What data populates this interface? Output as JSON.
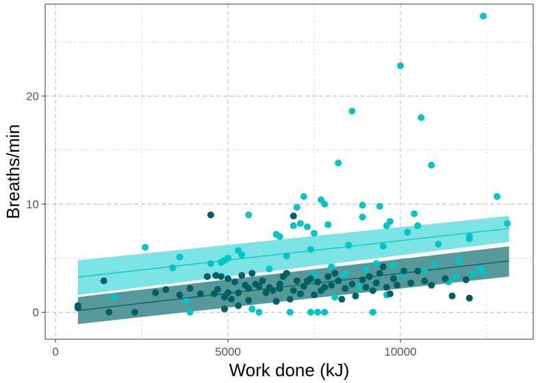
{
  "chart_data": {
    "type": "scatter",
    "title": "",
    "xlabel": "Work done (kJ)",
    "ylabel": "Breaths/min",
    "xlim": [
      -300,
      13850
    ],
    "ylim": [
      -2.5,
      28.5
    ],
    "x_ticks": [
      0,
      5000,
      10000
    ],
    "x_tick_labels": [
      "0",
      "5000",
      "10000"
    ],
    "y_ticks": [
      0,
      10,
      20
    ],
    "y_tick_labels": [
      "0",
      "10",
      "20"
    ],
    "grid": true,
    "legend": "none",
    "series": [
      {
        "color": "#00C4C7",
        "band_color": "#6EE0E1",
        "fit": {
          "x": [
            650,
            13150
          ],
          "y": [
            3.25,
            7.75
          ],
          "lower": [
            1.6,
            6.5
          ],
          "upper": [
            4.8,
            8.9
          ]
        },
        "points": [
          [
            1700,
            1.4
          ],
          [
            2600,
            6.0
          ],
          [
            3400,
            4.1
          ],
          [
            3600,
            5.1
          ],
          [
            3800,
            1.0
          ],
          [
            3900,
            0.0
          ],
          [
            4500,
            4.5
          ],
          [
            4800,
            4.6
          ],
          [
            4900,
            4.8
          ],
          [
            5000,
            5.0
          ],
          [
            5300,
            5.7
          ],
          [
            5400,
            5.3
          ],
          [
            5600,
            9.0
          ],
          [
            5700,
            0.3
          ],
          [
            5900,
            0.0
          ],
          [
            6200,
            4.0
          ],
          [
            6400,
            7.2
          ],
          [
            6500,
            7.0
          ],
          [
            6700,
            5.2
          ],
          [
            6800,
            0.0
          ],
          [
            6900,
            8.0
          ],
          [
            7000,
            9.7
          ],
          [
            7100,
            8.2
          ],
          [
            7200,
            10.7
          ],
          [
            7300,
            7.9
          ],
          [
            7400,
            5.8
          ],
          [
            7500,
            7.3
          ],
          [
            7600,
            0.0
          ],
          [
            7700,
            10.4
          ],
          [
            7800,
            10.0
          ],
          [
            7900,
            8.1
          ],
          [
            7400,
            0.0
          ],
          [
            7500,
            3.5
          ],
          [
            7800,
            0.0
          ],
          [
            8000,
            4.2
          ],
          [
            8100,
            1.4
          ],
          [
            8200,
            13.8
          ],
          [
            8400,
            3.5
          ],
          [
            8500,
            6.2
          ],
          [
            8600,
            18.6
          ],
          [
            8800,
            2.3
          ],
          [
            8900,
            9.9
          ],
          [
            8900,
            8.8
          ],
          [
            9000,
            4.0
          ],
          [
            9200,
            0.0
          ],
          [
            9300,
            4.5
          ],
          [
            9400,
            9.8
          ],
          [
            9500,
            6.1
          ],
          [
            9600,
            8.0
          ],
          [
            9700,
            8.4
          ],
          [
            9600,
            1.6
          ],
          [
            9800,
            4.3
          ],
          [
            10000,
            22.8
          ],
          [
            10100,
            3.5
          ],
          [
            10200,
            7.4
          ],
          [
            10400,
            9.1
          ],
          [
            10500,
            8.0
          ],
          [
            10600,
            18.0
          ],
          [
            10700,
            3.8
          ],
          [
            10900,
            13.6
          ],
          [
            11000,
            4.4
          ],
          [
            11100,
            6.3
          ],
          [
            11400,
            2.8
          ],
          [
            11600,
            3.3
          ],
          [
            11700,
            4.8
          ],
          [
            12000,
            7.0
          ],
          [
            12000,
            6.8
          ],
          [
            12100,
            3.5
          ],
          [
            12300,
            4.0
          ],
          [
            12400,
            27.4
          ],
          [
            12400,
            3.7
          ],
          [
            12800,
            10.7
          ],
          [
            13100,
            8.2
          ]
        ]
      },
      {
        "color": "#005F61",
        "band_color": "#458E8F",
        "fit": {
          "x": [
            650,
            13150
          ],
          "y": [
            0.15,
            4.75
          ],
          "lower": [
            -1.1,
            3.3
          ],
          "upper": [
            1.4,
            6.1
          ]
        },
        "points": [
          [
            650,
            0.6
          ],
          [
            650,
            0.4
          ],
          [
            1400,
            2.9
          ],
          [
            1550,
            0.0
          ],
          [
            2300,
            0.0
          ],
          [
            2900,
            1.8
          ],
          [
            3200,
            2.1
          ],
          [
            3600,
            1.6
          ],
          [
            3900,
            2.2
          ],
          [
            4200,
            1.7
          ],
          [
            4500,
            9.0
          ],
          [
            4600,
            1.7
          ],
          [
            4650,
            3.4
          ],
          [
            4700,
            2.1
          ],
          [
            4800,
            3.3
          ],
          [
            4900,
            1.4
          ],
          [
            5000,
            1.8
          ],
          [
            5000,
            3.1
          ],
          [
            5100,
            1.2
          ],
          [
            5200,
            2.8
          ],
          [
            5300,
            1.8
          ],
          [
            5400,
            3.4
          ],
          [
            5500,
            2.5
          ],
          [
            5600,
            2.2
          ],
          [
            5600,
            1.1
          ],
          [
            5700,
            3.6
          ],
          [
            5800,
            2.6
          ],
          [
            5900,
            2.4
          ],
          [
            6000,
            2.9
          ],
          [
            6100,
            1.8
          ],
          [
            6200,
            2.3
          ],
          [
            6300,
            2.0
          ],
          [
            6400,
            1.0
          ],
          [
            6500,
            2.6
          ],
          [
            6600,
            3.3
          ],
          [
            6700,
            3.6
          ],
          [
            6800,
            1.2
          ],
          [
            6900,
            2.0
          ],
          [
            6900,
            8.9
          ],
          [
            7000,
            2.9
          ],
          [
            7100,
            1.7
          ],
          [
            7200,
            2.4
          ],
          [
            7300,
            2.9
          ],
          [
            7400,
            3.1
          ],
          [
            7500,
            1.6
          ],
          [
            7600,
            2.8
          ],
          [
            7700,
            2.0
          ],
          [
            7800,
            2.3
          ],
          [
            7900,
            3.3
          ],
          [
            8000,
            2.5
          ],
          [
            8100,
            3.6
          ],
          [
            8200,
            2.9
          ],
          [
            8300,
            1.2
          ],
          [
            8400,
            2.2
          ],
          [
            8600,
            2.6
          ],
          [
            8700,
            1.5
          ],
          [
            8900,
            3.0
          ],
          [
            9000,
            2.3
          ],
          [
            9100,
            3.3
          ],
          [
            9200,
            2.0
          ],
          [
            9300,
            2.7
          ],
          [
            9400,
            3.6
          ],
          [
            9500,
            4.2
          ],
          [
            9600,
            2.3
          ],
          [
            9700,
            1.7
          ],
          [
            9800,
            3.1
          ],
          [
            9900,
            2.5
          ],
          [
            10100,
            3.8
          ],
          [
            10300,
            2.7
          ],
          [
            10500,
            3.8
          ],
          [
            10700,
            2.9
          ],
          [
            10900,
            2.5
          ],
          [
            11300,
            3.1
          ],
          [
            11500,
            1.5
          ],
          [
            11900,
            3.0
          ],
          [
            12000,
            1.3
          ],
          [
            4400,
            3.3
          ],
          [
            5300,
            0.6
          ],
          [
            4900,
            0.3
          ],
          [
            6500,
            2.2
          ]
        ]
      }
    ]
  }
}
